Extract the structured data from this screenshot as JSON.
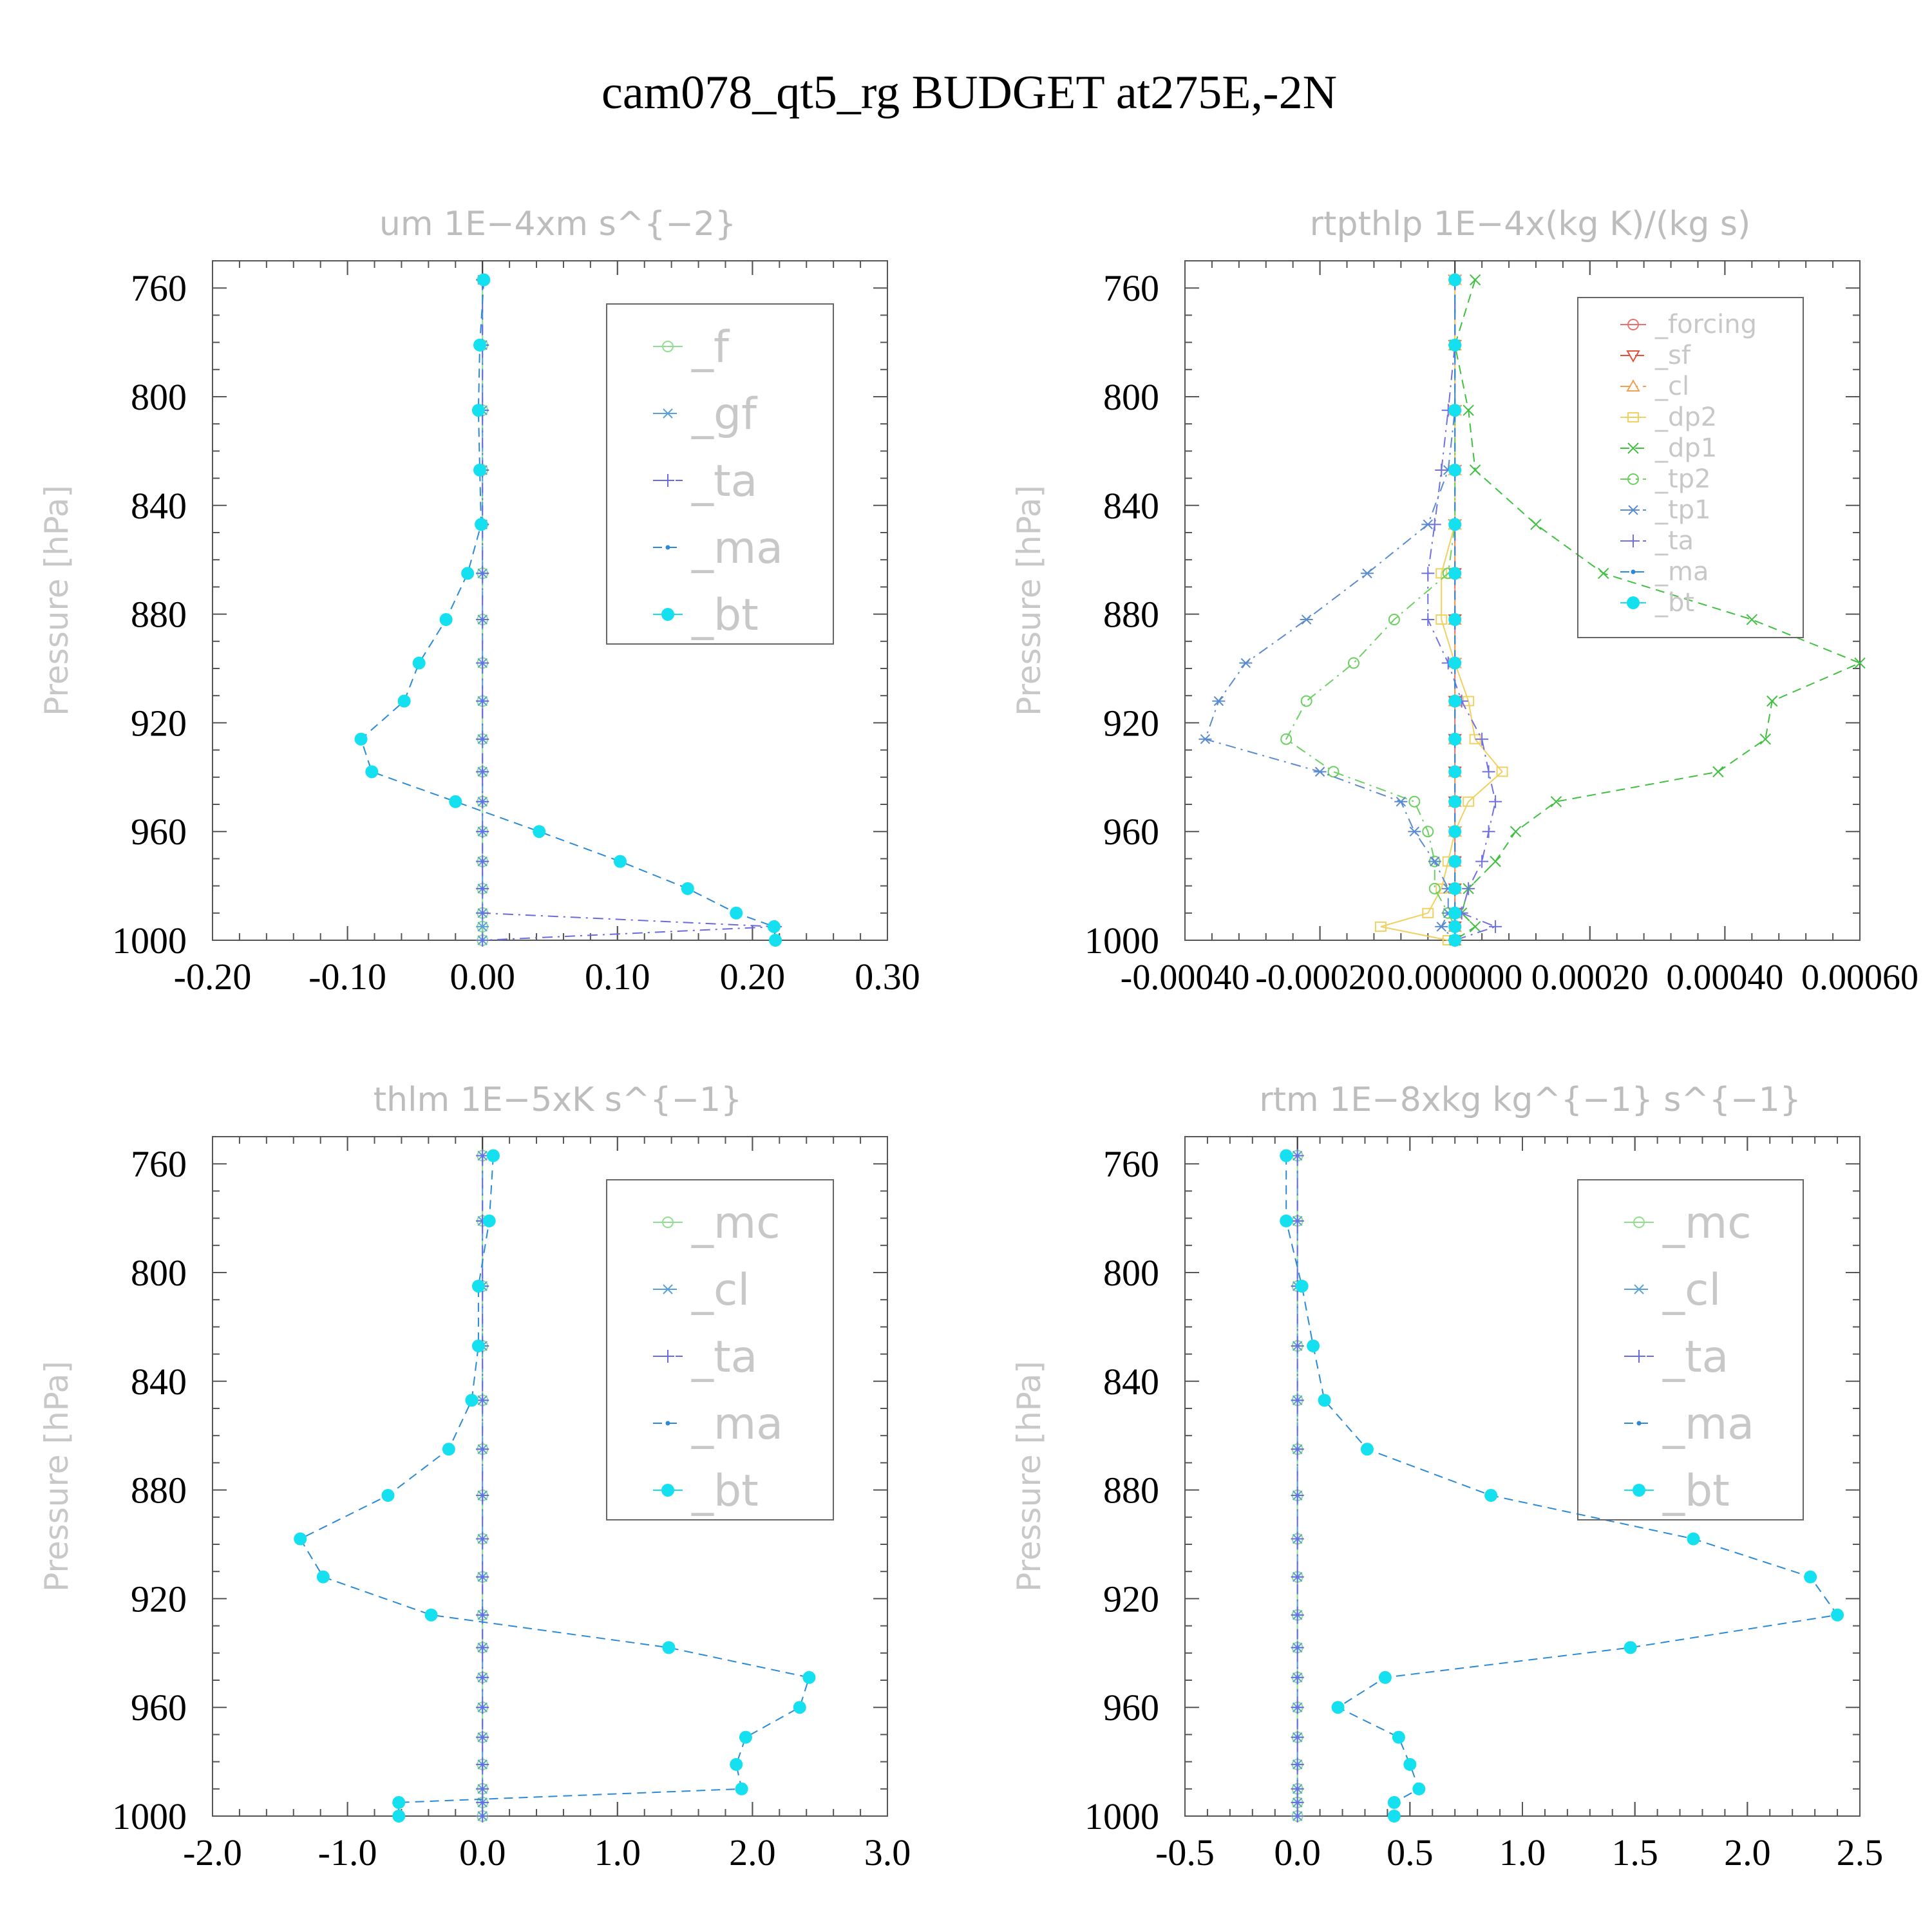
{
  "title": "cam078_qt5_rg  BUDGET at275E,-2N",
  "chart_data": [
    {
      "type": "line",
      "title": "um   1E−4xm s^{−2}",
      "ylabel": "Pressure  [hPa]",
      "ylim": [
        1000,
        750
      ],
      "yticks": [
        760,
        800,
        840,
        880,
        920,
        960,
        1000
      ],
      "xlim": [
        -0.2,
        0.3
      ],
      "xticks": [
        -0.2,
        -0.1,
        0.0,
        0.1,
        0.2,
        0.3
      ],
      "xtick_labels": [
        "-0.20",
        "-0.10",
        "0.00",
        "0.10",
        "0.20",
        "0.30"
      ],
      "legend_size": "large",
      "y": [
        757,
        781,
        805,
        827,
        847,
        865,
        882,
        898,
        912,
        926,
        938,
        949,
        960,
        971,
        981,
        990,
        995,
        1000
      ],
      "series": [
        {
          "name": "_f",
          "color": "#8fdf8f",
          "marker": "circle",
          "dash": "solid",
          "values": [
            0,
            0,
            0,
            0,
            0,
            0,
            0,
            0,
            0,
            0,
            0,
            0,
            0,
            0,
            0,
            0,
            0,
            0
          ]
        },
        {
          "name": "_gf",
          "color": "#5aa0d8",
          "marker": "asterisk",
          "dash": "dash",
          "values": [
            0,
            0,
            0,
            0,
            0,
            0,
            0,
            0,
            0,
            0,
            0,
            0,
            0,
            0,
            0,
            0,
            0,
            0
          ]
        },
        {
          "name": "_ta",
          "color": "#6a6ae0",
          "marker": "plus",
          "dash": "dashdot",
          "values": [
            0,
            0,
            0,
            0,
            0,
            0,
            0,
            0,
            0,
            0,
            0,
            0,
            0,
            0,
            0,
            0,
            0.217,
            0
          ]
        },
        {
          "name": "_ma",
          "color": "#2a8ad8",
          "marker": "dot",
          "dash": "dash",
          "values": [
            0.001,
            -0.002,
            -0.003,
            -0.002,
            -0.001,
            -0.011,
            -0.027,
            -0.047,
            -0.058,
            -0.09,
            -0.082,
            -0.02,
            0.042,
            0.102,
            0.152,
            0.188,
            0.216,
            0.217
          ]
        },
        {
          "name": "_bt",
          "color": "#14e0f0",
          "marker": "bigdot",
          "dash": "none",
          "values": [
            0.001,
            -0.002,
            -0.003,
            -0.002,
            -0.001,
            -0.011,
            -0.027,
            -0.047,
            -0.058,
            -0.09,
            -0.082,
            -0.02,
            0.042,
            0.102,
            0.152,
            0.188,
            0.216,
            0.217
          ]
        }
      ]
    },
    {
      "type": "line",
      "title": "rtpthlp   1E−4x(kg K)/(kg s)",
      "ylabel": "Pressure  [hPa]",
      "ylim": [
        1000,
        750
      ],
      "yticks": [
        760,
        800,
        840,
        880,
        920,
        960,
        1000
      ],
      "xlim": [
        -0.0004,
        0.0006
      ],
      "xticks": [
        -0.0004,
        -0.0002,
        0.0,
        0.0002,
        0.0004,
        0.0006
      ],
      "xtick_labels": [
        "-0.00040",
        "-0.00020",
        "0.000000",
        "0.00020",
        "0.00040",
        "0.00060"
      ],
      "legend_size": "small",
      "y": [
        757,
        781,
        805,
        827,
        847,
        865,
        882,
        898,
        912,
        926,
        938,
        949,
        960,
        971,
        981,
        990,
        995,
        1000
      ],
      "series": [
        {
          "name": "_forcing",
          "color": "#e87070",
          "marker": "circle",
          "dash": "solid",
          "values": [
            0,
            0,
            0,
            0,
            0,
            0,
            0,
            0,
            0,
            0,
            0,
            0,
            0,
            0,
            0,
            0,
            0,
            0
          ]
        },
        {
          "name": "_sf",
          "color": "#e0503a",
          "marker": "triangle-down",
          "dash": "dash",
          "values": [
            0,
            0,
            0,
            0,
            0,
            0,
            0,
            0,
            0,
            0,
            0,
            0,
            0,
            0,
            0,
            0,
            0,
            0
          ]
        },
        {
          "name": "_cl",
          "color": "#f0a050",
          "marker": "triangle-up",
          "dash": "dashdot",
          "values": [
            0,
            0,
            0,
            0,
            0,
            0,
            0,
            0,
            0,
            0,
            0,
            0,
            0,
            0,
            0,
            0,
            0,
            0
          ]
        },
        {
          "name": "_dp2",
          "color": "#f0d060",
          "marker": "square",
          "dash": "solid",
          "values": [
            0,
            0,
            0,
            0,
            0,
            -2e-05,
            -2e-05,
            0,
            2e-05,
            3e-05,
            7e-05,
            2e-05,
            0,
            -1e-05,
            -2e-05,
            -4e-05,
            -0.00011,
            -1e-05
          ]
        },
        {
          "name": "_dp1",
          "color": "#40c040",
          "marker": "x",
          "dash": "dash",
          "values": [
            3e-05,
            0.0,
            2e-05,
            3e-05,
            0.00012,
            0.00022,
            0.00044,
            0.0006,
            0.00047,
            0.00046,
            0.00039,
            0.00015,
            9e-05,
            6e-05,
            2e-05,
            1e-05,
            3e-05,
            0
          ]
        },
        {
          "name": "_tp2",
          "color": "#6ad060",
          "marker": "circle",
          "dash": "dashdot",
          "values": [
            0,
            0,
            0,
            0,
            0,
            -1e-05,
            -9e-05,
            -0.00015,
            -0.00022,
            -0.00025,
            -0.00018,
            -6e-05,
            -4e-05,
            -3e-05,
            -3e-05,
            -1e-05,
            0,
            0
          ]
        },
        {
          "name": "_tp1",
          "color": "#5a8ad0",
          "marker": "asterisk",
          "dash": "dashdot",
          "values": [
            0,
            0,
            0,
            -1e-05,
            -4e-05,
            -0.00013,
            -0.00022,
            -0.00031,
            -0.00035,
            -0.00037,
            -0.0002,
            -8e-05,
            -6e-05,
            -3e-05,
            -1e-05,
            -1e-05,
            -2e-05,
            0
          ]
        },
        {
          "name": "_ta",
          "color": "#7070e0",
          "marker": "plus",
          "dash": "dashdot",
          "values": [
            0,
            0,
            -1e-05,
            -2e-05,
            -3e-05,
            -4e-05,
            -4e-05,
            -1e-05,
            1e-05,
            4e-05,
            5e-05,
            6e-05,
            5e-05,
            4e-05,
            2e-05,
            1e-05,
            6e-05,
            0
          ]
        },
        {
          "name": "_ma",
          "color": "#2a8ad8",
          "marker": "dot",
          "dash": "dash",
          "values": [
            0,
            0,
            0,
            0,
            0,
            0,
            0,
            0,
            0,
            0,
            0,
            0,
            0,
            0,
            0,
            0,
            0,
            0
          ]
        },
        {
          "name": "_bt",
          "color": "#14e0f0",
          "marker": "bigdot",
          "dash": "none",
          "values": [
            0,
            0,
            0,
            0,
            0,
            0,
            0,
            0,
            0,
            0,
            0,
            0,
            0,
            0,
            0,
            0,
            0,
            0
          ]
        }
      ]
    },
    {
      "type": "line",
      "title": "thlm   1E−5xK s^{−1}",
      "ylabel": "Pressure  [hPa]",
      "ylim": [
        1000,
        750
      ],
      "yticks": [
        760,
        800,
        840,
        880,
        920,
        960,
        1000
      ],
      "xlim": [
        -2.0,
        3.0
      ],
      "xticks": [
        -2,
        -1,
        0,
        1,
        2,
        3
      ],
      "xtick_labels": [
        "-2.0",
        "-1.0",
        "0.0",
        "1.0",
        "2.0",
        "3.0"
      ],
      "legend_size": "large",
      "y": [
        757,
        781,
        805,
        827,
        847,
        865,
        882,
        898,
        912,
        926,
        938,
        949,
        960,
        971,
        981,
        990,
        995,
        1000
      ],
      "series": [
        {
          "name": "_mc",
          "color": "#8fdf8f",
          "marker": "circle",
          "dash": "solid",
          "values": [
            0,
            0,
            0,
            0,
            0,
            0,
            0,
            0,
            0,
            0,
            0,
            0,
            0,
            0,
            0,
            0,
            0,
            0
          ]
        },
        {
          "name": "_cl",
          "color": "#5aa0d8",
          "marker": "asterisk",
          "dash": "dash",
          "values": [
            0,
            0,
            0,
            0,
            0,
            0,
            0,
            0,
            0,
            0,
            0,
            0,
            0,
            0,
            0,
            0,
            0,
            0
          ]
        },
        {
          "name": "_ta",
          "color": "#6a6ae0",
          "marker": "plus",
          "dash": "dashdot",
          "values": [
            0,
            0,
            0,
            0,
            0,
            0,
            0,
            0,
            0,
            0,
            0,
            0,
            0,
            0,
            0,
            0,
            0,
            0
          ]
        },
        {
          "name": "_ma",
          "color": "#2a8ad8",
          "marker": "dot",
          "dash": "dash",
          "values": [
            0.08,
            0.05,
            -0.03,
            -0.03,
            -0.08,
            -0.25,
            -0.7,
            -1.35,
            -1.18,
            -0.38,
            1.38,
            2.42,
            2.35,
            1.95,
            1.88,
            1.92,
            -0.62,
            -0.62
          ]
        },
        {
          "name": "_bt",
          "color": "#14e0f0",
          "marker": "bigdot",
          "dash": "none",
          "values": [
            0.08,
            0.05,
            -0.03,
            -0.03,
            -0.08,
            -0.25,
            -0.7,
            -1.35,
            -1.18,
            -0.38,
            1.38,
            2.42,
            2.35,
            1.95,
            1.88,
            1.92,
            -0.62,
            -0.62
          ]
        }
      ]
    },
    {
      "type": "line",
      "title": "rtm   1E−8xkg kg^{−1} s^{−1}",
      "ylabel": "Pressure  [hPa]",
      "ylim": [
        1000,
        750
      ],
      "yticks": [
        760,
        800,
        840,
        880,
        920,
        960,
        1000
      ],
      "xlim": [
        -0.5,
        2.5
      ],
      "xticks": [
        -0.5,
        0.0,
        0.5,
        1.0,
        1.5,
        2.0,
        2.5
      ],
      "xtick_labels": [
        "-0.5",
        "0.0",
        "0.5",
        "1.0",
        "1.5",
        "2.0",
        "2.5"
      ],
      "legend_size": "large",
      "y": [
        757,
        781,
        805,
        827,
        847,
        865,
        882,
        898,
        912,
        926,
        938,
        949,
        960,
        971,
        981,
        990,
        995,
        1000
      ],
      "series": [
        {
          "name": "_mc",
          "color": "#8fdf8f",
          "marker": "circle",
          "dash": "solid",
          "values": [
            0,
            0,
            0,
            0,
            0,
            0,
            0,
            0,
            0,
            0,
            0,
            0,
            0,
            0,
            0,
            0,
            0,
            0
          ]
        },
        {
          "name": "_cl",
          "color": "#5aa0d8",
          "marker": "asterisk",
          "dash": "dash",
          "values": [
            0,
            0,
            0,
            0,
            0,
            0,
            0,
            0,
            0,
            0,
            0,
            0,
            0,
            0,
            0,
            0,
            0,
            0
          ]
        },
        {
          "name": "_ta",
          "color": "#6a6ae0",
          "marker": "plus",
          "dash": "dashdot",
          "values": [
            0,
            0,
            0,
            0,
            0,
            0,
            0,
            0,
            0,
            0,
            0,
            0,
            0,
            0,
            0,
            0,
            0,
            0
          ]
        },
        {
          "name": "_ma",
          "color": "#2a8ad8",
          "marker": "dot",
          "dash": "dash",
          "values": [
            -0.05,
            -0.05,
            0.02,
            0.07,
            0.12,
            0.31,
            0.86,
            1.76,
            2.28,
            2.4,
            1.48,
            0.39,
            0.18,
            0.45,
            0.5,
            0.54,
            0.43,
            0.43
          ]
        },
        {
          "name": "_bt",
          "color": "#14e0f0",
          "marker": "bigdot",
          "dash": "none",
          "values": [
            -0.05,
            -0.05,
            0.02,
            0.07,
            0.12,
            0.31,
            0.86,
            1.76,
            2.28,
            2.4,
            1.48,
            0.39,
            0.18,
            0.45,
            0.5,
            0.54,
            0.43,
            0.43
          ]
        }
      ]
    }
  ]
}
